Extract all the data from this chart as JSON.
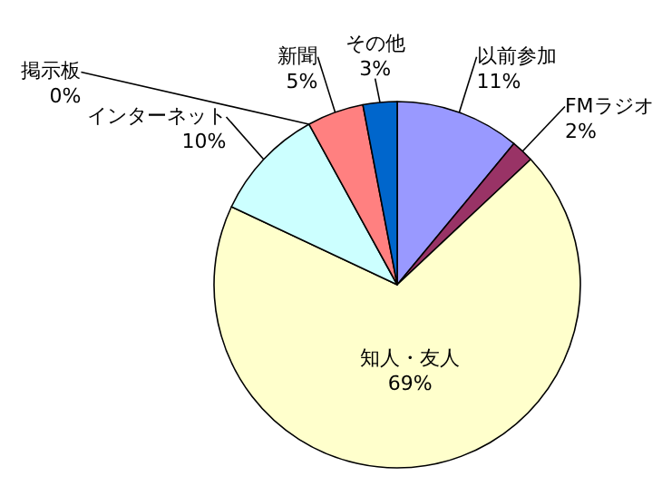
{
  "chart_data": {
    "type": "pie",
    "categories": [
      "以前参加",
      "FMラジオ",
      "知人・友人",
      "インターネット",
      "掲示板",
      "新聞",
      "その他"
    ],
    "values": [
      11,
      2,
      69,
      10,
      0,
      5,
      3
    ],
    "value_labels": [
      "11%",
      "2%",
      "69%",
      "10%",
      "0%",
      "5%",
      "3%"
    ],
    "colors": [
      "#9999ff",
      "#993366",
      "#ffffcc",
      "#ccffff",
      "#660066",
      "#ff8080",
      "#0066cc"
    ]
  }
}
